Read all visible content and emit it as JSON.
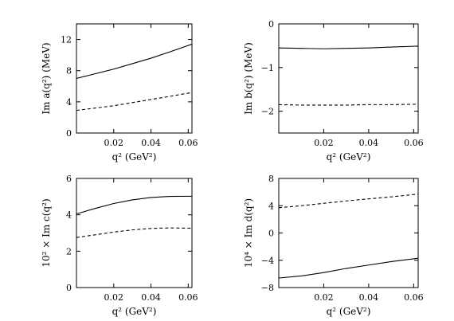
{
  "chart_data": [
    {
      "type": "line",
      "xlabel": "q² (GeV²)",
      "ylabel": "Im a(q²) (MeV)",
      "xlim": [
        0.0,
        0.062
      ],
      "ylim": [
        0,
        14
      ],
      "xticks": [
        0.02,
        0.04,
        0.06
      ],
      "yticks": [
        0,
        4,
        8,
        12
      ],
      "xtick_labels": [
        "0.02",
        "0.04",
        "0.06"
      ],
      "ytick_labels": [
        "0",
        "4",
        "8",
        "12"
      ],
      "series": [
        {
          "style": "solid",
          "x": [
            0.0,
            0.01,
            0.02,
            0.03,
            0.04,
            0.05,
            0.062
          ],
          "y": [
            7.0,
            7.6,
            8.2,
            8.9,
            9.6,
            10.4,
            11.4
          ]
        },
        {
          "style": "dashed",
          "x": [
            0.0,
            0.01,
            0.02,
            0.03,
            0.04,
            0.05,
            0.062
          ],
          "y": [
            2.9,
            3.2,
            3.5,
            3.9,
            4.3,
            4.7,
            5.2
          ]
        }
      ]
    },
    {
      "type": "line",
      "xlabel": "q² (GeV²)",
      "ylabel": "Im b(q²) (MeV)",
      "xlim": [
        0.0,
        0.062
      ],
      "ylim": [
        -2.5,
        0
      ],
      "xticks": [
        0.02,
        0.04,
        0.06
      ],
      "yticks": [
        -2,
        -1,
        0
      ],
      "xtick_labels": [
        "0.02",
        "0.04",
        "0.06"
      ],
      "ytick_labels": [
        "−2",
        "−1",
        "0"
      ],
      "series": [
        {
          "style": "solid",
          "x": [
            0.0,
            0.01,
            0.02,
            0.03,
            0.04,
            0.05,
            0.062
          ],
          "y": [
            -0.55,
            -0.56,
            -0.57,
            -0.56,
            -0.55,
            -0.53,
            -0.51
          ]
        },
        {
          "style": "dashed",
          "x": [
            0.0,
            0.01,
            0.02,
            0.03,
            0.04,
            0.05,
            0.062
          ],
          "y": [
            -1.85,
            -1.86,
            -1.86,
            -1.86,
            -1.85,
            -1.85,
            -1.84
          ]
        }
      ]
    },
    {
      "type": "line",
      "xlabel": "q² (GeV²)",
      "ylabel": "10² × Im c(q²)",
      "xlim": [
        0.0,
        0.062
      ],
      "ylim": [
        0,
        6
      ],
      "xticks": [
        0.02,
        0.04,
        0.06
      ],
      "yticks": [
        0,
        2,
        4,
        6
      ],
      "xtick_labels": [
        "0.02",
        "0.04",
        "0.06"
      ],
      "ytick_labels": [
        "0",
        "2",
        "4",
        "6"
      ],
      "series": [
        {
          "style": "solid",
          "x": [
            0.0,
            0.01,
            0.02,
            0.03,
            0.04,
            0.05,
            0.062
          ],
          "y": [
            4.05,
            4.35,
            4.62,
            4.82,
            4.95,
            5.01,
            5.02
          ]
        },
        {
          "style": "dashed",
          "x": [
            0.0,
            0.01,
            0.02,
            0.03,
            0.04,
            0.05,
            0.062
          ],
          "y": [
            2.75,
            2.9,
            3.05,
            3.17,
            3.25,
            3.28,
            3.26
          ]
        }
      ]
    },
    {
      "type": "line",
      "xlabel": "q² (GeV²)",
      "ylabel": "10⁴ × Im d(q²)",
      "xlim": [
        0.0,
        0.062
      ],
      "ylim": [
        -8,
        8
      ],
      "xticks": [
        0.02,
        0.04,
        0.06
      ],
      "yticks": [
        -8,
        -4,
        0,
        4,
        8
      ],
      "xtick_labels": [
        "0.02",
        "0.04",
        "0.06"
      ],
      "ytick_labels": [
        "−8",
        "−4",
        "0",
        "4",
        "8"
      ],
      "series": [
        {
          "style": "solid",
          "x": [
            0.0,
            0.01,
            0.02,
            0.03,
            0.04,
            0.05,
            0.062
          ],
          "y": [
            -6.6,
            -6.3,
            -5.8,
            -5.2,
            -4.7,
            -4.2,
            -3.7
          ]
        },
        {
          "style": "dashed",
          "x": [
            0.0,
            0.01,
            0.02,
            0.03,
            0.04,
            0.05,
            0.062
          ],
          "y": [
            3.7,
            4.0,
            4.35,
            4.7,
            5.0,
            5.3,
            5.7
          ]
        }
      ]
    }
  ]
}
